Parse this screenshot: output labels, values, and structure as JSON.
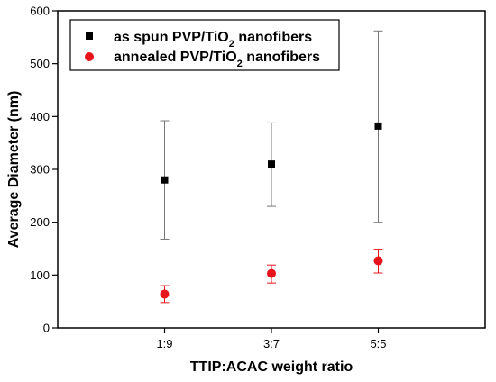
{
  "chart_data": {
    "type": "scatter",
    "xlabel": "TTIP:ACAC weight ratio",
    "ylabel": "Average Diameter (nm)",
    "categories": [
      "1:9",
      "3:7",
      "5:5"
    ],
    "ylim": [
      0,
      600
    ],
    "yticks": [
      0,
      100,
      200,
      300,
      400,
      500,
      600
    ],
    "legend_position": "top-left",
    "series": [
      {
        "name": "as spun PVP/TiO2 nanofibers",
        "name_main": "as spun PVP/TiO",
        "name_sub": "2",
        "name_tail": " nanofibers",
        "marker": "square",
        "color": "#000000",
        "errorbar_color": "#777777",
        "values": [
          280,
          310,
          382
        ],
        "error_low": [
          168,
          230,
          200
        ],
        "error_high": [
          392,
          388,
          562
        ]
      },
      {
        "name": "annealed PVP/TiO2 nanofibers",
        "name_main": "annealed PVP/TiO",
        "name_sub": "2",
        "name_tail": " nanofibers",
        "marker": "circle",
        "color": "#e8141c",
        "errorbar_color": "#e8141c",
        "values": [
          64,
          103,
          127
        ],
        "error_low": [
          48,
          85,
          104
        ],
        "error_high": [
          80,
          119,
          149
        ]
      }
    ]
  }
}
